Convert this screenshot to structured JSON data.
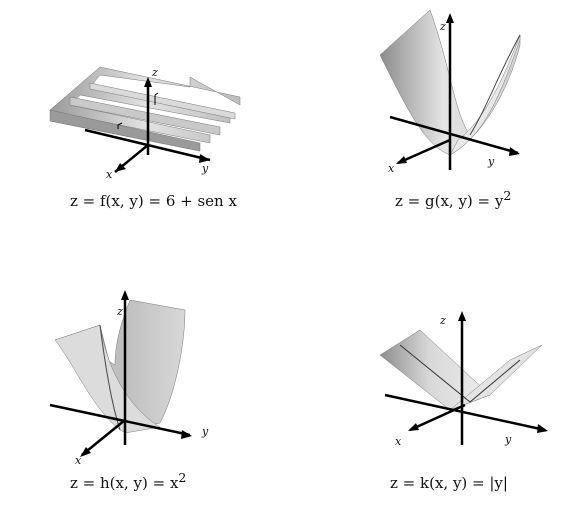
{
  "panels": [
    {
      "caption_pre": "z = f(x, y) = 6 + sen x",
      "caption_sup": "",
      "caption_post": "",
      "axis_x": "x",
      "axis_y": "y",
      "axis_z": "z"
    },
    {
      "caption_pre": "z = g(x, y) = y",
      "caption_sup": "2",
      "caption_post": "",
      "axis_x": "x",
      "axis_y": "y",
      "axis_z": "z"
    },
    {
      "caption_pre": "z = h(x, y) = x",
      "caption_sup": "2",
      "caption_post": "",
      "axis_x": "x",
      "axis_y": "y",
      "axis_z": "z"
    },
    {
      "caption_pre": "z = k(x, y) = |y|",
      "caption_sup": "",
      "caption_post": "",
      "axis_x": "x",
      "axis_y": "y",
      "axis_z": "z"
    }
  ],
  "colors": {
    "axis": "#000000",
    "surface_light": "#e6e6e6",
    "surface_dark": "#8a8a8a"
  }
}
